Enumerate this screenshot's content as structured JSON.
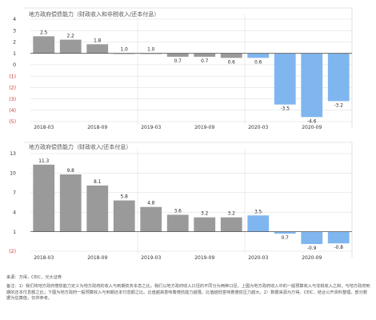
{
  "colors": {
    "gray": "#9a9a9a",
    "blue": "#7fb6f0",
    "red": "#cc3333",
    "grid": "#d9d9d9",
    "axis": "#555555"
  },
  "chart_data": [
    {
      "type": "bar",
      "title": "地方政府偿债能力（财政收入和非税收入/还本付息）",
      "categories": [
        "2018-03",
        "2018-06",
        "2018-09",
        "2018-12",
        "2019-03",
        "2019-06",
        "2019-09",
        "2019-12",
        "2020-03",
        "2020-06",
        "2020-09",
        "2020-12"
      ],
      "values": [
        2.5,
        2.2,
        1.8,
        1.0,
        1.0,
        0.7,
        0.7,
        0.6,
        0.6,
        -3.5,
        -4.6,
        -3.2
      ],
      "labels": [
        "2.5",
        "2.2",
        "1.8",
        "1.0",
        "1.0",
        "0.7",
        "0.7",
        "0.6",
        "0.6",
        "-3.5",
        "-4.6",
        "-3.2"
      ],
      "x_tick_labels": [
        "2018-03",
        "2018-09",
        "2019-03",
        "2019-09",
        "2020-03",
        "2020-09"
      ],
      "y_ticks": [
        4,
        3,
        2,
        1,
        0,
        -1,
        -2,
        -3,
        -4,
        -5
      ],
      "y_tick_labels": [
        "4",
        "3",
        "2",
        "1",
        "0",
        "(1)",
        "(2)",
        "(3)",
        "(4)",
        "(5)"
      ],
      "ylim": [
        -5,
        4
      ],
      "highlight_from_index": 8,
      "reference_line": 1
    },
    {
      "type": "bar",
      "title": "地方政府偿债能力（财政收入/还本付息）",
      "categories": [
        "2018-03",
        "2018-06",
        "2018-09",
        "2018-12",
        "2019-03",
        "2019-06",
        "2019-09",
        "2019-12",
        "2020-03",
        "2020-06",
        "2020-09",
        "2020-12"
      ],
      "values": [
        11.3,
        9.8,
        8.1,
        5.8,
        4.8,
        3.6,
        3.2,
        3.2,
        3.5,
        0.7,
        -0.9,
        -0.8
      ],
      "labels": [
        "11.3",
        "9.8",
        "8.1",
        "5.8",
        "4.8",
        "3.6",
        "3.2",
        "3.2",
        "3.5",
        "0.7",
        "-0.9",
        "-0.8"
      ],
      "x_tick_labels": [
        "2018-03",
        "2018-09",
        "2019-03",
        "2019-09",
        "2020-03",
        "2020-09"
      ],
      "y_ticks": [
        13,
        10,
        7,
        4,
        1,
        -2
      ],
      "y_tick_labels": [
        "13",
        "10",
        "7",
        "4",
        "1",
        "(2)"
      ],
      "ylim": [
        -2,
        13
      ],
      "highlight_from_index": 8,
      "reference_line": 1
    }
  ],
  "footnote": {
    "source": "来源：万得，CEIC，光大证券",
    "note": "备注：1）我们将地方政府偿债能力定义为地方政府的收入与到期债务本息之比。我们以地方政府收入口径的不同分为两种口径，上图为地方政府收入中的一般预算收入与非税收入之和，与地方政府到期的还本付息额之比；下图为地方政府一般预算收入与到期还本付息额之比。比值越高意味着偿债能力越强，比值越低意味着偿债压力越大。2）数据来源为万得、CEIC，结合公开资料整理，部分数据为估算值，仅供参考。"
  }
}
